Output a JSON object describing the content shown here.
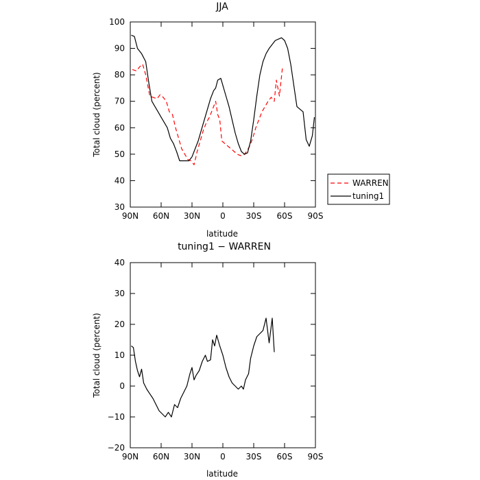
{
  "chart_data": [
    {
      "type": "line",
      "title": "JJA",
      "xlabel": "latitude",
      "ylabel": "Total cloud (percent)",
      "xlim": [
        90,
        -90
      ],
      "ylim": [
        30,
        100
      ],
      "xticks": [
        90,
        60,
        30,
        0,
        -30,
        -60,
        -90
      ],
      "xtick_labels": [
        "90N",
        "60N",
        "30N",
        "0",
        "30S",
        "60S",
        "90S"
      ],
      "yticks": [
        30,
        40,
        50,
        60,
        70,
        80,
        90,
        100
      ],
      "ytick_labels": [
        "30",
        "40",
        "50",
        "60",
        "70",
        "80",
        "90",
        "100"
      ],
      "legend": {
        "placement": "right"
      },
      "series": [
        {
          "name": "WARREN",
          "color": "#ff0000",
          "dash": "dashed",
          "points": [
            [
              88,
              82
            ],
            [
              84,
              81.5
            ],
            [
              81,
              83
            ],
            [
              78,
              84
            ],
            [
              75,
              80
            ],
            [
              71,
              72
            ],
            [
              68,
              71.5
            ],
            [
              64,
              71
            ],
            [
              61,
              72.5
            ],
            [
              58,
              71.5
            ],
            [
              55,
              70
            ],
            [
              52,
              66
            ],
            [
              49,
              65
            ],
            [
              46,
              60
            ],
            [
              43,
              56
            ],
            [
              40,
              52
            ],
            [
              37,
              50
            ],
            [
              34,
              48
            ],
            [
              31,
              47.5
            ],
            [
              28,
              46
            ],
            [
              25,
              51
            ],
            [
              22,
              55
            ],
            [
              19,
              59
            ],
            [
              16,
              62
            ],
            [
              13,
              64
            ],
            [
              10,
              67
            ],
            [
              7,
              70
            ],
            [
              5,
              65
            ],
            [
              3,
              63
            ],
            [
              1,
              55
            ],
            [
              -2,
              54
            ],
            [
              -5,
              53
            ],
            [
              -8,
              52
            ],
            [
              -11,
              51
            ],
            [
              -14,
              50
            ],
            [
              -17,
              49.5
            ],
            [
              -20,
              49.5
            ],
            [
              -23,
              51
            ],
            [
              -26,
              53
            ],
            [
              -29,
              56
            ],
            [
              -32,
              60
            ],
            [
              -35,
              63
            ],
            [
              -38,
              66
            ],
            [
              -41,
              68
            ],
            [
              -44,
              70
            ],
            [
              -47,
              71.5
            ],
            [
              -50,
              70
            ],
            [
              -52,
              78
            ],
            [
              -55,
              72
            ],
            [
              -58,
              83
            ]
          ]
        },
        {
          "name": "tuning1",
          "color": "#000000",
          "dash": "solid",
          "points": [
            [
              89,
              95
            ],
            [
              86,
              94.5
            ],
            [
              83,
              90
            ],
            [
              79,
              88
            ],
            [
              75,
              85
            ],
            [
              72,
              77
            ],
            [
              69,
              70
            ],
            [
              66,
              68
            ],
            [
              63,
              66
            ],
            [
              60,
              64
            ],
            [
              57,
              62
            ],
            [
              54,
              60
            ],
            [
              51,
              56
            ],
            [
              48,
              54
            ],
            [
              45,
              51
            ],
            [
              42,
              47.5
            ],
            [
              39,
              47.5
            ],
            [
              36,
              47.5
            ],
            [
              33,
              47.5
            ],
            [
              30,
              49
            ],
            [
              27,
              52
            ],
            [
              24,
              55
            ],
            [
              21,
              59
            ],
            [
              18,
              63
            ],
            [
              15,
              67
            ],
            [
              12,
              71
            ],
            [
              9,
              74
            ],
            [
              7,
              75
            ],
            [
              5,
              78
            ],
            [
              2,
              78.7
            ],
            [
              0,
              76
            ],
            [
              -3,
              72
            ],
            [
              -6,
              68
            ],
            [
              -9,
              63
            ],
            [
              -12,
              58
            ],
            [
              -15,
              54
            ],
            [
              -18,
              51
            ],
            [
              -21,
              50
            ],
            [
              -24,
              50.5
            ],
            [
              -27,
              55
            ],
            [
              -30,
              63
            ],
            [
              -33,
              72
            ],
            [
              -36,
              80
            ],
            [
              -39,
              85
            ],
            [
              -42,
              88
            ],
            [
              -45,
              90
            ],
            [
              -48,
              91.5
            ],
            [
              -51,
              93
            ],
            [
              -54,
              93.5
            ],
            [
              -57,
              94
            ],
            [
              -60,
              93
            ],
            [
              -63,
              90
            ],
            [
              -66,
              84
            ],
            [
              -69,
              76
            ],
            [
              -72,
              68
            ],
            [
              -75,
              67
            ],
            [
              -78,
              66
            ],
            [
              -81,
              55.5
            ],
            [
              -84,
              53
            ],
            [
              -87,
              57
            ],
            [
              -89,
              64
            ]
          ]
        }
      ]
    },
    {
      "type": "line",
      "title": "tuning1 − WARREN",
      "xlabel": "latitude",
      "ylabel": "Total cloud (percent)",
      "xlim": [
        90,
        -90
      ],
      "ylim": [
        -20,
        40
      ],
      "xticks": [
        90,
        60,
        30,
        0,
        -30,
        -60,
        -90
      ],
      "xtick_labels": [
        "90N",
        "60N",
        "30N",
        "0",
        "30S",
        "60S",
        "90S"
      ],
      "yticks": [
        -20,
        -10,
        0,
        10,
        20,
        30,
        40
      ],
      "ytick_labels": [
        "−20",
        "−10",
        "0",
        "10",
        "20",
        "30",
        "40"
      ],
      "series": [
        {
          "name": "",
          "color": "#000000",
          "dash": "solid",
          "points": [
            [
              89,
              13
            ],
            [
              87,
              12.5
            ],
            [
              85,
              8
            ],
            [
              83,
              5
            ],
            [
              81,
              3
            ],
            [
              79,
              5.5
            ],
            [
              77,
              1
            ],
            [
              74,
              -1
            ],
            [
              71,
              -2.5
            ],
            [
              68,
              -4
            ],
            [
              65,
              -6
            ],
            [
              62,
              -8
            ],
            [
              59,
              -9
            ],
            [
              56,
              -10
            ],
            [
              53,
              -8.5
            ],
            [
              50,
              -10
            ],
            [
              47,
              -6
            ],
            [
              44,
              -7
            ],
            [
              41,
              -4
            ],
            [
              38,
              -2
            ],
            [
              35,
              0
            ],
            [
              32,
              4
            ],
            [
              30,
              6
            ],
            [
              28,
              2
            ],
            [
              26,
              3.5
            ],
            [
              23,
              5
            ],
            [
              20,
              8
            ],
            [
              17,
              10
            ],
            [
              15,
              8
            ],
            [
              12,
              8.5
            ],
            [
              10,
              15
            ],
            [
              8,
              13
            ],
            [
              6,
              16.5
            ],
            [
              3,
              13
            ],
            [
              0,
              10
            ],
            [
              -3,
              6
            ],
            [
              -6,
              3
            ],
            [
              -9,
              1
            ],
            [
              -12,
              0
            ],
            [
              -15,
              -1
            ],
            [
              -18,
              0
            ],
            [
              -20,
              -1
            ],
            [
              -22,
              2
            ],
            [
              -25,
              4
            ],
            [
              -27,
              9
            ],
            [
              -30,
              13
            ],
            [
              -33,
              16
            ],
            [
              -36,
              17
            ],
            [
              -39,
              18
            ],
            [
              -42,
              22
            ],
            [
              -45,
              14
            ],
            [
              -48,
              22
            ],
            [
              -50,
              11
            ]
          ]
        }
      ]
    }
  ]
}
